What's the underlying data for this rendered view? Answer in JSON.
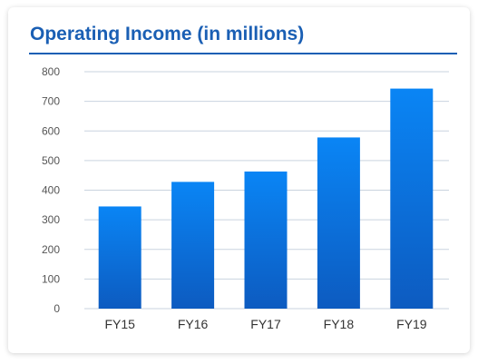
{
  "chart_data": {
    "type": "bar",
    "title": "Operating Income (in millions)",
    "categories": [
      "FY15",
      "FY16",
      "FY17",
      "FY18",
      "FY19"
    ],
    "values": [
      345,
      428,
      463,
      578,
      743
    ],
    "yticks": [
      0,
      100,
      200,
      300,
      400,
      500,
      600,
      700,
      800
    ],
    "ylim": [
      0,
      800
    ],
    "xlabel": "",
    "ylabel": "",
    "grid": true,
    "legend": "none",
    "colors": {
      "bar_top": "#0a85f5",
      "bar_bottom": "#0d5bc0",
      "title": "#1a5fb4"
    }
  }
}
